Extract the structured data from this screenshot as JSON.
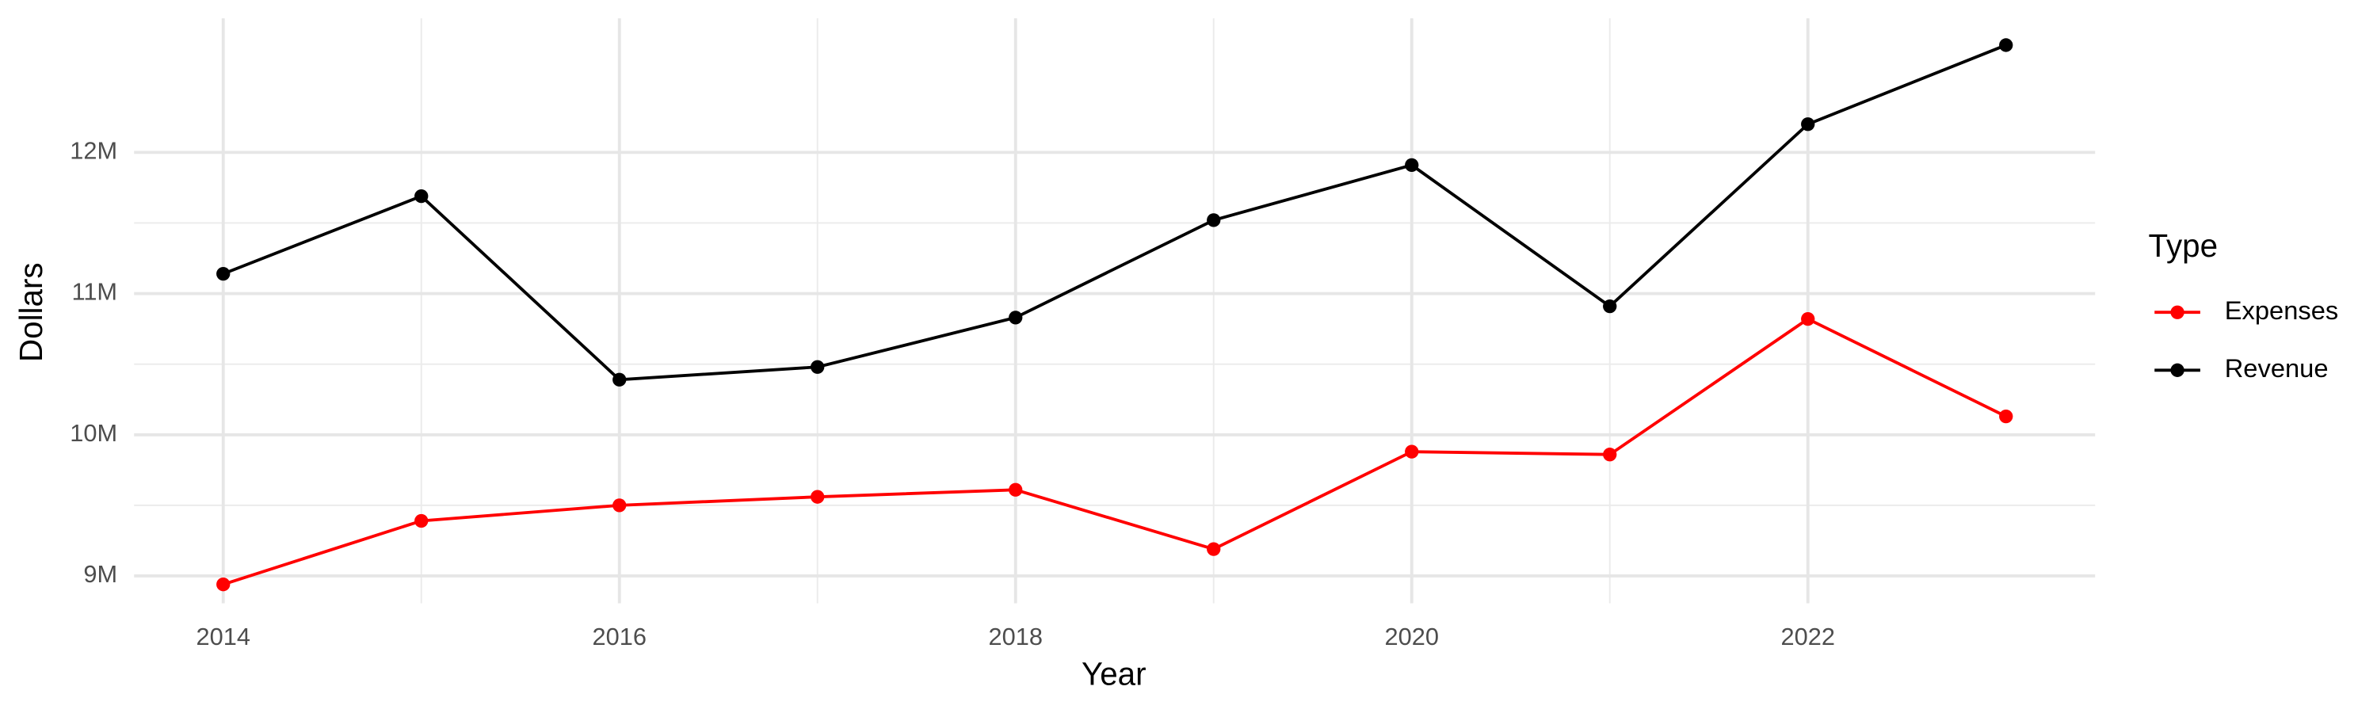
{
  "chart_data": {
    "type": "line",
    "x_label": "Year",
    "y_label": "Dollars",
    "legend_title": "Type",
    "legend_position": "right",
    "grid": true,
    "x": [
      2014,
      2015,
      2016,
      2017,
      2018,
      2019,
      2020,
      2021,
      2022,
      2023
    ],
    "series": [
      {
        "name": "Expenses",
        "color": "#ff0000",
        "values": [
          8940000,
          9390000,
          9500000,
          9560000,
          9610000,
          9190000,
          9880000,
          9860000,
          10820000,
          10130000
        ]
      },
      {
        "name": "Revenue",
        "color": "#000000",
        "values": [
          11140000,
          11690000,
          10390000,
          10480000,
          10830000,
          11520000,
          11910000,
          10910000,
          12200000,
          12760000
        ]
      }
    ],
    "xlim": [
      2013.55,
      2023.45
    ],
    "xticks": [
      2014,
      2016,
      2018,
      2020,
      2022
    ],
    "ylim": [
      8806000,
      12950000
    ],
    "yticks": [
      {
        "value": 9000000,
        "label": "9M"
      },
      {
        "value": 10000000,
        "label": "10M"
      },
      {
        "value": 11000000,
        "label": "11M"
      },
      {
        "value": 12000000,
        "label": "12M"
      }
    ]
  }
}
